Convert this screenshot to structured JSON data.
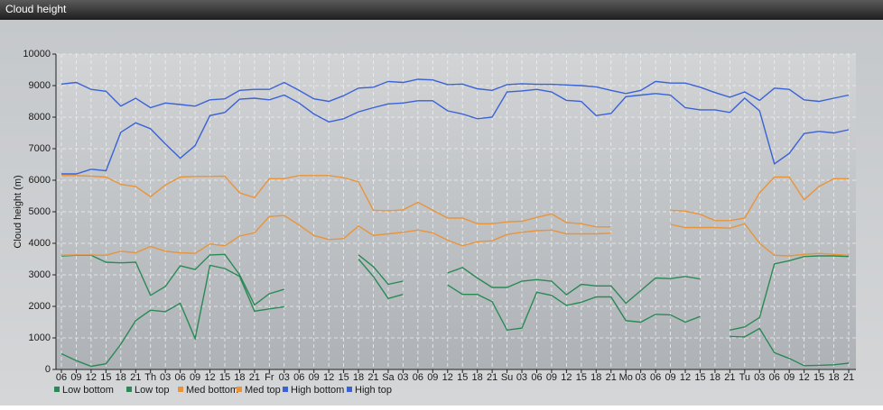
{
  "chart_data": {
    "type": "line",
    "title": "Cloud height",
    "ylabel": "Cloud height (m)",
    "categories": [
      "06",
      "09",
      "12",
      "15",
      "18",
      "21",
      "Th",
      "03",
      "06",
      "09",
      "12",
      "15",
      "18",
      "21",
      "Fr",
      "03",
      "06",
      "09",
      "12",
      "15",
      "18",
      "21",
      "Sa",
      "03",
      "06",
      "09",
      "12",
      "15",
      "18",
      "21",
      "Su",
      "03",
      "06",
      "09",
      "12",
      "15",
      "18",
      "21",
      "Mo",
      "03",
      "06",
      "09",
      "12",
      "15",
      "18",
      "21",
      "Tu",
      "03",
      "06",
      "09",
      "12",
      "15",
      "18",
      "21"
    ],
    "ylim": [
      0,
      10000
    ],
    "yticks": [
      0,
      1000,
      2000,
      3000,
      4000,
      5000,
      6000,
      7000,
      8000,
      9000,
      10000
    ],
    "grid": true,
    "series": [
      {
        "name": "Low bottom",
        "color": "#2a8a55",
        "values": [
          500,
          280,
          100,
          180,
          800,
          1550,
          1880,
          1830,
          2100,
          980,
          3300,
          3200,
          2950,
          1850,
          1920,
          1990,
          null,
          null,
          null,
          null,
          3500,
          2950,
          2250,
          2380,
          null,
          null,
          2680,
          2380,
          2380,
          2150,
          1250,
          1310,
          2450,
          2350,
          2030,
          2130,
          2300,
          2300,
          1550,
          1500,
          1750,
          1730,
          1500,
          1680,
          null,
          1050,
          1030,
          1300,
          530,
          350,
          120,
          130,
          150,
          200
        ]
      },
      {
        "name": "Low top",
        "color": "#2a8a55",
        "values": [
          3600,
          3620,
          3620,
          3400,
          3380,
          3400,
          2350,
          2630,
          3290,
          3170,
          3630,
          3650,
          3000,
          2050,
          2400,
          2540,
          null,
          null,
          null,
          null,
          3630,
          3260,
          2700,
          2800,
          null,
          null,
          3060,
          3230,
          2900,
          2600,
          2600,
          2800,
          2850,
          2800,
          2370,
          2700,
          2650,
          2650,
          2100,
          2500,
          2900,
          2880,
          2950,
          2870,
          null,
          1250,
          1350,
          1650,
          3350,
          3450,
          3580,
          3600,
          3600,
          3580
        ]
      },
      {
        "name": "Med bottom",
        "color": "#e8943a",
        "values": [
          3620,
          3630,
          3630,
          3620,
          3750,
          3700,
          3900,
          3750,
          3700,
          3680,
          3980,
          3920,
          4230,
          4330,
          4850,
          4880,
          4580,
          4250,
          4120,
          4150,
          4550,
          4250,
          4300,
          4350,
          4420,
          4330,
          4100,
          3920,
          4050,
          4080,
          4280,
          4350,
          4400,
          4420,
          4300,
          4300,
          4300,
          4320,
          null,
          null,
          null,
          4600,
          4500,
          4500,
          4500,
          4480,
          4620,
          4000,
          3620,
          3600,
          3650,
          3680,
          3650,
          3620
        ]
      },
      {
        "name": "Med top",
        "color": "#e8943a",
        "values": [
          6150,
          6150,
          6130,
          6100,
          5870,
          5800,
          5480,
          5850,
          6100,
          6120,
          6120,
          6130,
          5600,
          5450,
          6050,
          6050,
          6150,
          6150,
          6150,
          6080,
          5950,
          5050,
          5030,
          5060,
          5300,
          5050,
          4800,
          4800,
          4620,
          4620,
          4680,
          4700,
          4820,
          4930,
          4660,
          4620,
          4520,
          4520,
          null,
          null,
          null,
          5050,
          5020,
          4920,
          4720,
          4720,
          4800,
          5600,
          6100,
          6100,
          5380,
          5800,
          6050,
          6050
        ]
      },
      {
        "name": "High bottom",
        "color": "#3a62d6",
        "values": [
          6200,
          6200,
          6350,
          6300,
          7520,
          7820,
          7630,
          7150,
          6700,
          7100,
          8050,
          8150,
          8570,
          8600,
          8550,
          8700,
          8450,
          8100,
          7850,
          7950,
          8170,
          8300,
          8420,
          8450,
          8520,
          8520,
          8200,
          8100,
          7950,
          8000,
          8800,
          8830,
          8880,
          8800,
          8530,
          8500,
          8050,
          8120,
          8650,
          8700,
          8750,
          8700,
          8300,
          8230,
          8230,
          8150,
          8600,
          8200,
          6520,
          6850,
          7480,
          7550,
          7500,
          7600
        ]
      },
      {
        "name": "High top",
        "color": "#3a62d6",
        "values": [
          9050,
          9100,
          8880,
          8820,
          8350,
          8600,
          8300,
          8450,
          8400,
          8350,
          8550,
          8580,
          8850,
          8880,
          8880,
          9100,
          8850,
          8580,
          8500,
          8680,
          8920,
          8950,
          9130,
          9100,
          9200,
          9180,
          9030,
          9050,
          8900,
          8850,
          9030,
          9060,
          9040,
          9040,
          9020,
          9000,
          8960,
          8850,
          8750,
          8850,
          9130,
          9080,
          9080,
          8950,
          8780,
          8630,
          8800,
          8530,
          8920,
          8880,
          8550,
          8500,
          8600,
          8700
        ]
      }
    ]
  }
}
